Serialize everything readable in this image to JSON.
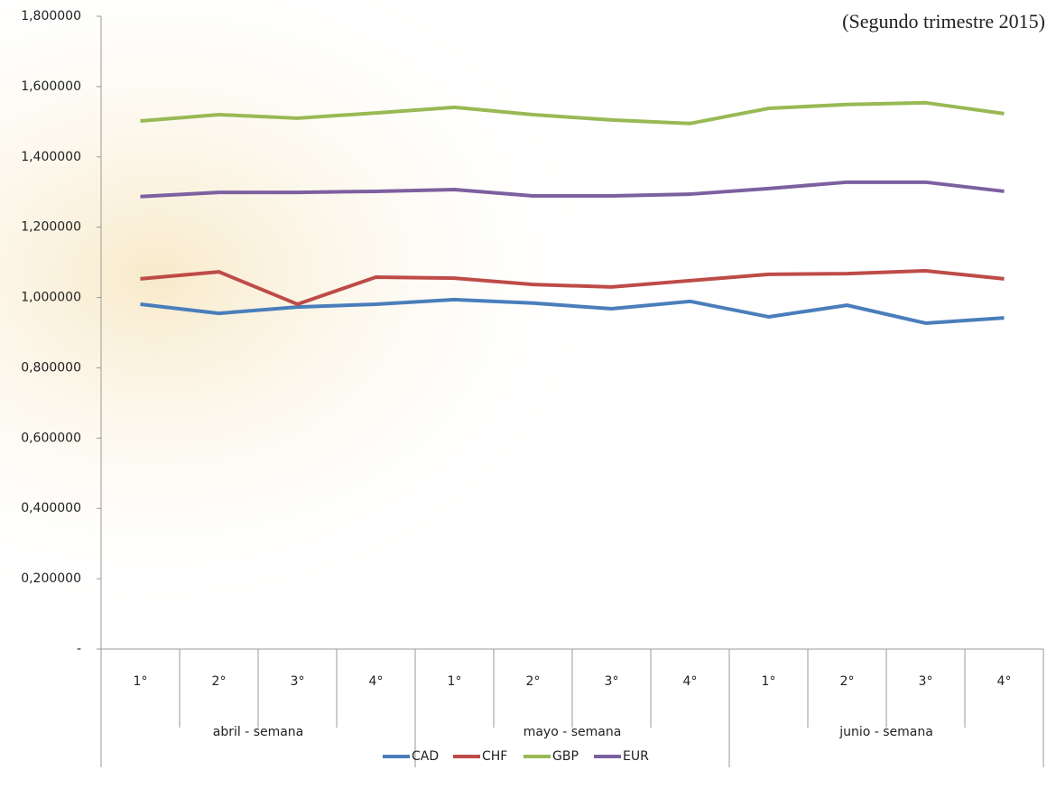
{
  "chart_data": {
    "type": "line",
    "subtitle": "(Segundo trimestre 2015)",
    "categories": [
      "1°",
      "2°",
      "3°",
      "4°",
      "1°",
      "2°",
      "3°",
      "4°",
      "1°",
      "2°",
      "3°",
      "4°"
    ],
    "groups": [
      "abril - semana",
      "mayo - semana",
      "junio - semana"
    ],
    "series": [
      {
        "name": "CAD",
        "color": "#4a7ebb",
        "values": [
          0.981,
          0.955,
          0.973,
          0.981,
          0.994,
          0.984,
          0.968,
          0.989,
          0.945,
          0.978,
          0.927,
          0.942
        ]
      },
      {
        "name": "CHF",
        "color": "#be4b48",
        "values": [
          1.053,
          1.073,
          0.981,
          1.058,
          1.055,
          1.037,
          1.03,
          1.048,
          1.066,
          1.068,
          1.076,
          1.053
        ]
      },
      {
        "name": "GBP",
        "color": "#98b954",
        "values": [
          1.502,
          1.52,
          1.51,
          1.525,
          1.541,
          1.52,
          1.505,
          1.495,
          1.538,
          1.549,
          1.554,
          1.523
        ]
      },
      {
        "name": "EUR",
        "color": "#7d60a0",
        "values": [
          1.287,
          1.299,
          1.299,
          1.302,
          1.307,
          1.289,
          1.289,
          1.294,
          1.31,
          1.328,
          1.328,
          1.302
        ]
      }
    ],
    "ylim": [
      0,
      1.8
    ],
    "yticks": [
      {
        "value": 0,
        "label": "-"
      },
      {
        "value": 0.2,
        "label": "0,200000"
      },
      {
        "value": 0.4,
        "label": "0,400000"
      },
      {
        "value": 0.6,
        "label": "0,600000"
      },
      {
        "value": 0.8,
        "label": "0,800000"
      },
      {
        "value": 1.0,
        "label": "1,000000"
      },
      {
        "value": 1.2,
        "label": "1,200000"
      },
      {
        "value": 1.4,
        "label": "1,400000"
      },
      {
        "value": 1.6,
        "label": "1,600000"
      },
      {
        "value": 1.8,
        "label": "1,800000"
      }
    ],
    "grid": false,
    "legend": "bottom"
  }
}
